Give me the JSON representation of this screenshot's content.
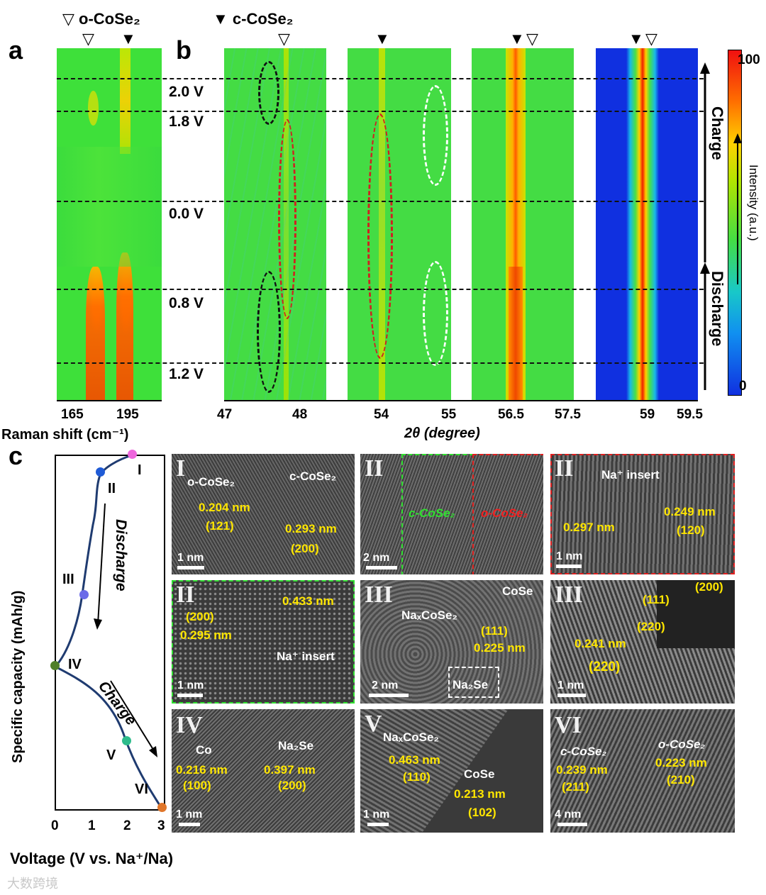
{
  "legend": {
    "o_label": "▽ o-CoSe₂",
    "c_label": "▼ c-CoSe₂",
    "open_marker": "▽",
    "filled_marker": "▼"
  },
  "panels": {
    "a": "a",
    "b": "b",
    "c": "c"
  },
  "raman": {
    "ticks": [
      "165",
      "195"
    ],
    "xlabel": "Raman shift (cm⁻¹)"
  },
  "xrd": {
    "ticks": [
      "47",
      "48",
      "54",
      "55",
      "56.5",
      "57.5",
      "59",
      "59.5"
    ],
    "xlabel": "2θ (degree)"
  },
  "voltages": [
    "2.0 V",
    "1.8 V",
    "0.0 V",
    "0.8 V",
    "1.2 V"
  ],
  "colorbar": {
    "max": "100",
    "min": "0",
    "label": "Intensity (a.u.)",
    "charge": "Charge",
    "discharge": "Discharge"
  },
  "curve": {
    "ylabel": "Specific capacity (mAh/g)",
    "xlabel": "Voltage (V vs. Na⁺/Na)",
    "xticks": [
      "0",
      "1",
      "2",
      "3"
    ],
    "points": [
      {
        "label": "I",
        "color": "#ee66dd"
      },
      {
        "label": "II",
        "color": "#1f5bd6"
      },
      {
        "label": "III",
        "color": "#6b6be8"
      },
      {
        "label": "IV",
        "color": "#4f7f2a"
      },
      {
        "label": "V",
        "color": "#2ebc8c"
      },
      {
        "label": "VI",
        "color": "#e0762a"
      }
    ],
    "discharge_label": "Discharge",
    "charge_label": "Charge"
  },
  "tem": {
    "p1": {
      "roman": "I",
      "o": "o-CoSe₂",
      "c": "c-CoSe₂",
      "d1": "0.204 nm",
      "h1": "(121)",
      "d2": "0.293 nm",
      "h2": "(200)",
      "scale": "1 nm"
    },
    "p2": {
      "roman": "II",
      "c": "c-CoSe₂",
      "o": "o-CoSe₂",
      "scale": "2 nm"
    },
    "p3": {
      "roman": "II",
      "na": "Na⁺ insert",
      "d1": "0.297 nm",
      "d2": "0.249 nm",
      "h2": "(120)",
      "scale": "1 nm"
    },
    "p4": {
      "roman": "II",
      "h1": "(200)",
      "d1": "0.295 nm",
      "d2": "0.433 nm",
      "na": "Na⁺ insert",
      "scale": "1 nm"
    },
    "p5": {
      "roman": "III",
      "naxcose": "NaₓCoSe₂",
      "cose": "CoSe",
      "h1": "(111)",
      "d1": "0.225 nm",
      "na2se": "Na₂Se",
      "scale": "2 nm"
    },
    "p6": {
      "roman": "III",
      "h1": "(111)",
      "h2": "(200)",
      "h3": "(220)",
      "d1": "0.241 nm",
      "h4": "(220)",
      "scale": "1 nm"
    },
    "p7": {
      "roman": "IV",
      "co": "Co",
      "na2se": "Na₂Se",
      "d1": "0.216 nm",
      "h1": "(100)",
      "d2": "0.397 nm",
      "h2": "(200)",
      "scale": "1 nm"
    },
    "p8": {
      "roman": "V",
      "naxcose": "NaₓCoSe₂",
      "d1": "0.463 nm",
      "h1": "(110)",
      "cose": "CoSe",
      "d2": "0.213 nm",
      "h2": "(102)",
      "scale": "1 nm"
    },
    "p9": {
      "roman": "VI",
      "c": "c-CoSe₂",
      "o": "o-CoSe₂",
      "d1": "0.239 nm",
      "h1": "(211)",
      "d2": "0.223 nm",
      "h2": "(210)",
      "scale": "4 nm"
    }
  },
  "watermark": "大数跨境"
}
